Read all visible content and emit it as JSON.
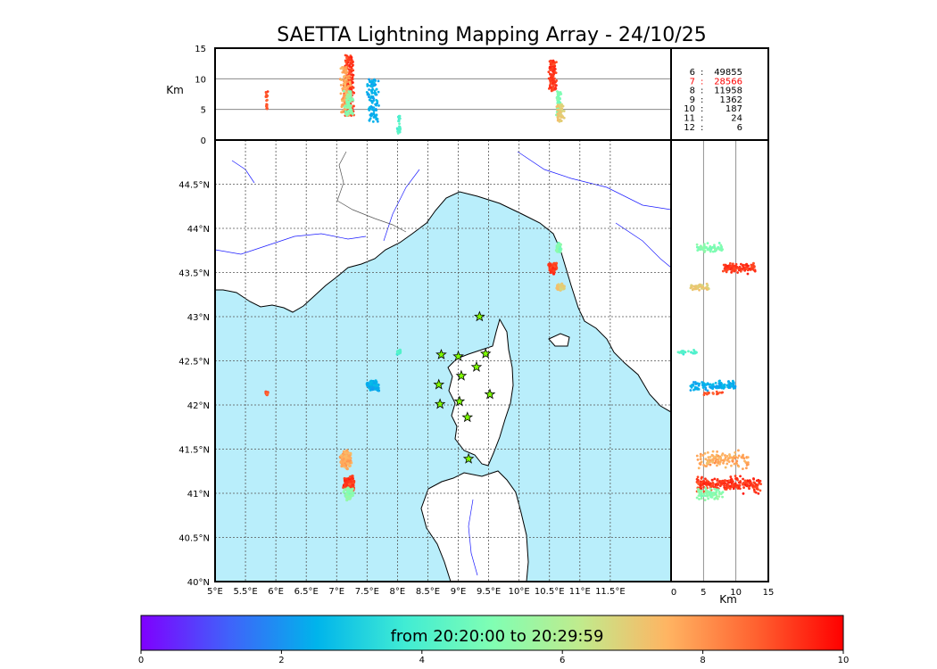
{
  "chart_data": {
    "type": "scatter",
    "title": "SAETTA Lightning Mapping Array - 24/10/25",
    "map": {
      "lon_range": [
        5,
        12.5
      ],
      "lat_range": [
        40,
        45
      ],
      "lon_ticks": [
        "5°E",
        "5.5°E",
        "6°E",
        "6.5°E",
        "7°E",
        "7.5°E",
        "8°E",
        "8.5°E",
        "9°E",
        "9.5°E",
        "10°E",
        "10.5°E",
        "11°E",
        "11.5°E"
      ],
      "lat_ticks": [
        "40°N",
        "40.5°N",
        "41°N",
        "41.5°N",
        "42°N",
        "42.5°N",
        "43°N",
        "43.5°N",
        "44°N",
        "44.5°N"
      ],
      "sea_color": "#b9eefb",
      "land_color": "#ffffff",
      "coast_color": "#000000",
      "river_color": "#1a1aff",
      "grid": true,
      "stations": [
        {
          "lon": 9.35,
          "lat": 43.0
        },
        {
          "lon": 8.72,
          "lat": 42.57
        },
        {
          "lon": 9.0,
          "lat": 42.55
        },
        {
          "lon": 9.45,
          "lat": 42.58
        },
        {
          "lon": 9.3,
          "lat": 42.43
        },
        {
          "lon": 9.05,
          "lat": 42.33
        },
        {
          "lon": 8.68,
          "lat": 42.23
        },
        {
          "lon": 9.52,
          "lat": 42.12
        },
        {
          "lon": 8.7,
          "lat": 42.01
        },
        {
          "lon": 9.02,
          "lat": 42.04
        },
        {
          "lon": 9.15,
          "lat": 41.86
        },
        {
          "lon": 9.17,
          "lat": 41.39
        }
      ],
      "station_color": "#7fff00"
    },
    "alt_top": {
      "ylabel": "Km",
      "ylim": [
        0,
        15
      ],
      "yticks": [
        "0",
        "5",
        "10",
        "15"
      ]
    },
    "alt_side": {
      "xlabel": "Km",
      "xlim": [
        0,
        15
      ],
      "xticks": [
        "0",
        "5",
        "10",
        "15"
      ]
    },
    "stats": [
      {
        "label": "6",
        "value": "49855",
        "color": "#000000"
      },
      {
        "label": "7",
        "value": "28566",
        "color": "#ff0000"
      },
      {
        "label": "8",
        "value": "11958",
        "color": "#000000"
      },
      {
        "label": "9",
        "value": "1362",
        "color": "#000000"
      },
      {
        "label": "10",
        "value": "187",
        "color": "#000000"
      },
      {
        "label": "11",
        "value": "24",
        "color": "#000000"
      },
      {
        "label": "12",
        "value": "6",
        "color": "#000000"
      }
    ],
    "clusters": [
      {
        "lon": 10.55,
        "lat": 43.55,
        "rlon": 0.08,
        "rlat": 0.07,
        "alt": [
          8,
          13
        ],
        "t": 9.3,
        "n": 120
      },
      {
        "lon": 10.65,
        "lat": 43.78,
        "rlon": 0.06,
        "rlat": 0.08,
        "alt": [
          4,
          8
        ],
        "t": 5.0,
        "n": 60
      },
      {
        "lon": 10.68,
        "lat": 43.33,
        "rlon": 0.08,
        "rlat": 0.05,
        "alt": [
          3,
          6
        ],
        "t": 7.0,
        "n": 50
      },
      {
        "lon": 7.2,
        "lat": 41.1,
        "rlon": 0.12,
        "rlat": 0.12,
        "alt": [
          4,
          14
        ],
        "t": 9.3,
        "n": 220
      },
      {
        "lon": 7.15,
        "lat": 41.38,
        "rlon": 0.12,
        "rlat": 0.12,
        "alt": [
          4,
          12
        ],
        "t": 7.6,
        "n": 120
      },
      {
        "lon": 7.2,
        "lat": 41.0,
        "rlon": 0.1,
        "rlat": 0.1,
        "alt": [
          4,
          8
        ],
        "t": 5.2,
        "n": 70
      },
      {
        "lon": 7.6,
        "lat": 42.22,
        "rlon": 0.12,
        "rlat": 0.07,
        "alt": [
          3,
          10
        ],
        "t": 2.4,
        "n": 110
      },
      {
        "lon": 8.02,
        "lat": 42.6,
        "rlon": 0.04,
        "rlat": 0.03,
        "alt": [
          1,
          4
        ],
        "t": 4.0,
        "n": 30
      },
      {
        "lon": 5.85,
        "lat": 42.13,
        "rlon": 0.03,
        "rlat": 0.03,
        "alt": [
          5,
          8
        ],
        "t": 9.0,
        "n": 20
      }
    ],
    "colorbar": {
      "label": "from 20:20:00 to 20:29:59",
      "range": [
        0,
        10
      ],
      "ticks": [
        "0",
        "2",
        "4",
        "6",
        "8",
        "10"
      ],
      "colormap": "rainbow"
    }
  }
}
